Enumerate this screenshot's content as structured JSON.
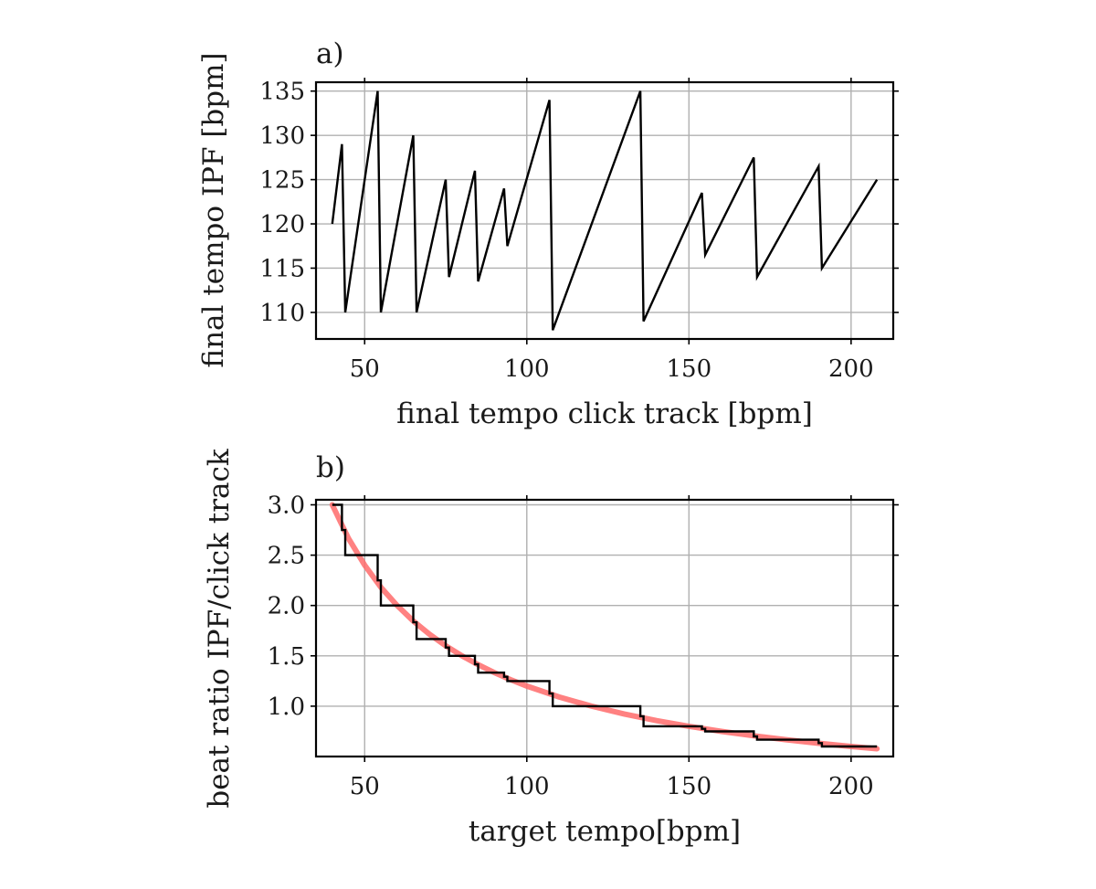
{
  "chart_data": [
    {
      "panel_label": "a)",
      "type": "line",
      "xlabel": "final tempo click track [bpm]",
      "ylabel": "final tempo IPF [bpm]",
      "xlim": [
        35,
        213
      ],
      "ylim": [
        107,
        136
      ],
      "xticks": [
        50,
        100,
        150,
        200
      ],
      "yticks": [
        110,
        115,
        120,
        125,
        130,
        135
      ],
      "grid": true,
      "series": [
        {
          "color": "#000000",
          "x": [
            40,
            43,
            44,
            54,
            55,
            65,
            66,
            75,
            76,
            84,
            85,
            93,
            94,
            107,
            108,
            135,
            136,
            154,
            155,
            170,
            171,
            190,
            191,
            208
          ],
          "y": [
            120,
            129,
            110,
            135,
            110,
            130,
            110,
            125,
            114,
            126,
            113.5,
            124,
            117.5,
            134,
            108,
            135,
            109,
            123.5,
            116.5,
            127.5,
            114,
            126.5,
            115,
            125
          ]
        }
      ]
    },
    {
      "panel_label": "b)",
      "type": "line",
      "xlabel": "target tempo[bpm]",
      "ylabel": "beat ratio IPF/click track",
      "xlim": [
        35,
        213
      ],
      "ylim": [
        0.5,
        3.05
      ],
      "xticks": [
        50,
        100,
        150,
        200
      ],
      "yticks": [
        1.0,
        1.5,
        2.0,
        2.5,
        3.0
      ],
      "grid": true,
      "series": [
        {
          "kind": "smooth-reference",
          "color": "#ff6b6b",
          "x": [
            40,
            45,
            50,
            55,
            60,
            65,
            70,
            75,
            80,
            85,
            90,
            95,
            100,
            110,
            120,
            130,
            140,
            150,
            160,
            170,
            180,
            190,
            200,
            208
          ],
          "y": [
            3.0,
            2.667,
            2.4,
            2.182,
            2.0,
            1.846,
            1.714,
            1.6,
            1.5,
            1.412,
            1.333,
            1.263,
            1.2,
            1.091,
            1.0,
            0.923,
            0.857,
            0.8,
            0.75,
            0.706,
            0.667,
            0.632,
            0.6,
            0.577
          ]
        },
        {
          "kind": "steps",
          "color": "#000000",
          "x": [
            40,
            43,
            43,
            44,
            44,
            54,
            54,
            55,
            55,
            65,
            65,
            66,
            66,
            75,
            75,
            76,
            76,
            84,
            84,
            85,
            85,
            93,
            93,
            94,
            94,
            107,
            107,
            108,
            108,
            135,
            135,
            136,
            136,
            154,
            154,
            155,
            155,
            170,
            170,
            171,
            171,
            190,
            190,
            191,
            191,
            208
          ],
          "y": [
            3.0,
            3.0,
            2.75,
            2.75,
            2.5,
            2.5,
            2.25,
            2.25,
            2.0,
            2.0,
            1.833,
            1.833,
            1.667,
            1.667,
            1.583,
            1.583,
            1.5,
            1.5,
            1.417,
            1.417,
            1.333,
            1.333,
            1.292,
            1.292,
            1.25,
            1.25,
            1.125,
            1.125,
            1.0,
            1.0,
            0.9,
            0.9,
            0.8,
            0.8,
            0.775,
            0.775,
            0.75,
            0.75,
            0.7,
            0.7,
            0.667,
            0.667,
            0.633,
            0.633,
            0.6,
            0.6
          ]
        }
      ]
    }
  ]
}
